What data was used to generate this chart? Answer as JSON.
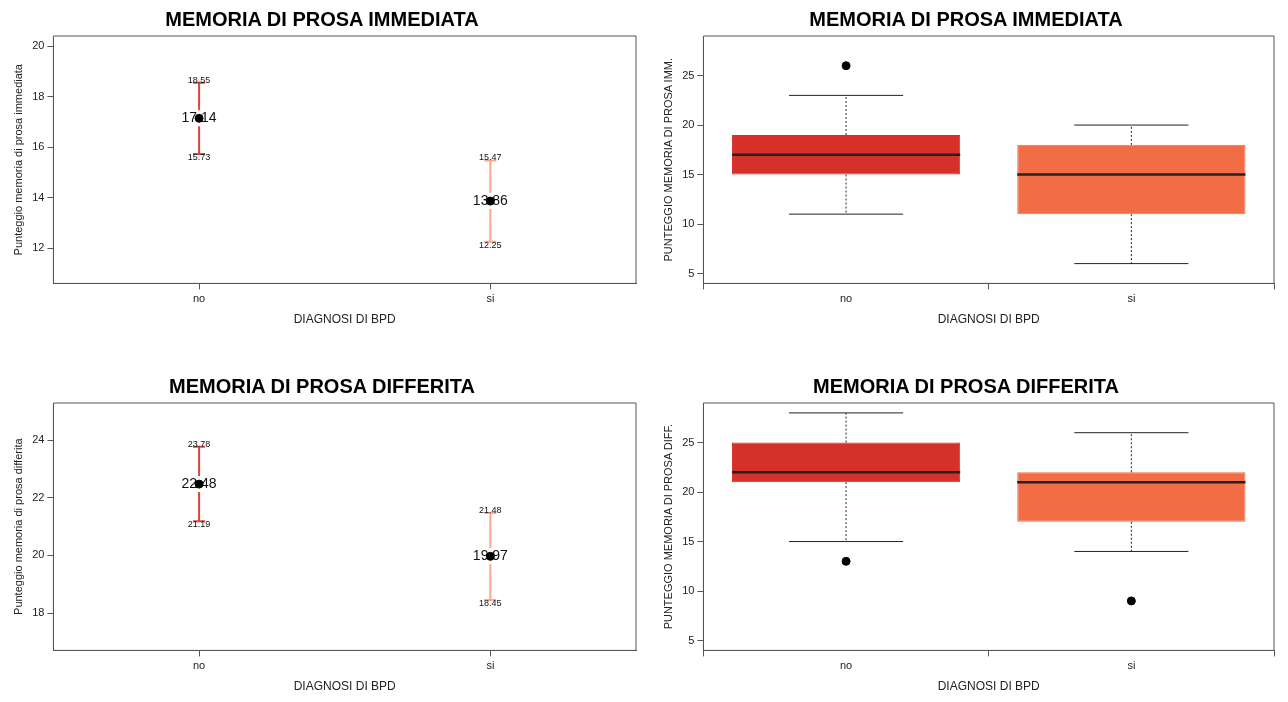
{
  "chart_data": [
    {
      "type": "scatter",
      "title": "MEMORIA DI PROSA IMMEDIATA",
      "xlabel": "DIAGNOSI DI BPD",
      "ylabel": "Punteggio memoria di prosa immediata",
      "categories": [
        "no",
        "si"
      ],
      "values": [
        17.14,
        13.86
      ],
      "errors": [
        [
          15.73,
          18.55
        ],
        [
          12.25,
          15.47
        ]
      ],
      "color": "#000000",
      "marker": "circle",
      "data_labels": true,
      "ylim": [
        10.6,
        20.4
      ],
      "yticks": [
        12,
        14,
        16,
        18,
        20
      ],
      "annotations": [
        {
          "text": "18.55",
          "x": "no",
          "y": 18.55
        },
        {
          "text": "15.73",
          "x": "no",
          "y": 15.73
        },
        {
          "text": "15.47",
          "x": "si",
          "y": 15.47
        },
        {
          "text": "12.25",
          "x": "si",
          "y": 12.25
        }
      ]
    },
    {
      "type": "box",
      "title": "MEMORIA DI PROSA IMMEDIATA",
      "xlabel": "DIAGNOSI DI BPD",
      "ylabel": "PUNTEGGIO MEMORIA DI PROSA IMM.",
      "categories": [
        "no",
        "si"
      ],
      "colors": [
        "#d6302a",
        "#f26c45"
      ],
      "ylim": [
        4,
        29
      ],
      "yticks": [
        5,
        10,
        15,
        20,
        25
      ],
      "boxes": [
        {
          "low": 11,
          "q1": 15,
          "median": 17,
          "q3": 19,
          "high": 23,
          "outliers": [
            26
          ]
        },
        {
          "low": 6,
          "q1": 11,
          "median": 15,
          "q3": 18,
          "high": 20
        }
      ]
    },
    {
      "type": "scatter",
      "title": "MEMORIA DI PROSA DIFFERITA",
      "xlabel": "DIAGNOSI DI BPD",
      "ylabel": "Punteggio memoria di prosa differita",
      "categories": [
        "no",
        "si"
      ],
      "values": [
        22.48,
        19.97
      ],
      "errors": [
        [
          21.19,
          23.78
        ],
        [
          18.45,
          21.48
        ]
      ],
      "color": "#000000",
      "marker": "circle",
      "data_labels": true,
      "ylim": [
        16.7,
        25.3
      ],
      "yticks": [
        18,
        20,
        22,
        24
      ],
      "annotations": [
        {
          "text": "23.78",
          "x": "no",
          "y": 23.78
        },
        {
          "text": "21.19",
          "x": "no",
          "y": 21.19
        },
        {
          "text": "21.48",
          "x": "si",
          "y": 21.48
        },
        {
          "text": "18.45",
          "x": "si",
          "y": 18.45
        }
      ]
    },
    {
      "type": "box",
      "title": "MEMORIA DI PROSA DIFFERITA",
      "xlabel": "DIAGNOSI DI BPD",
      "ylabel": "PUNTEGGIO MEMORIA DI PROSA DIFF.",
      "categories": [
        "no",
        "si"
      ],
      "colors": [
        "#d6302a",
        "#f26c45"
      ],
      "ylim": [
        4,
        29
      ],
      "yticks": [
        5,
        10,
        15,
        20,
        25
      ],
      "boxes": [
        {
          "low": 15,
          "q1": 21,
          "median": 22,
          "q3": 25,
          "high": 28,
          "outliers": [
            13
          ]
        },
        {
          "low": 14,
          "q1": 17,
          "median": 21,
          "q3": 22,
          "high": 26,
          "outliers": [
            9
          ]
        }
      ]
    }
  ]
}
